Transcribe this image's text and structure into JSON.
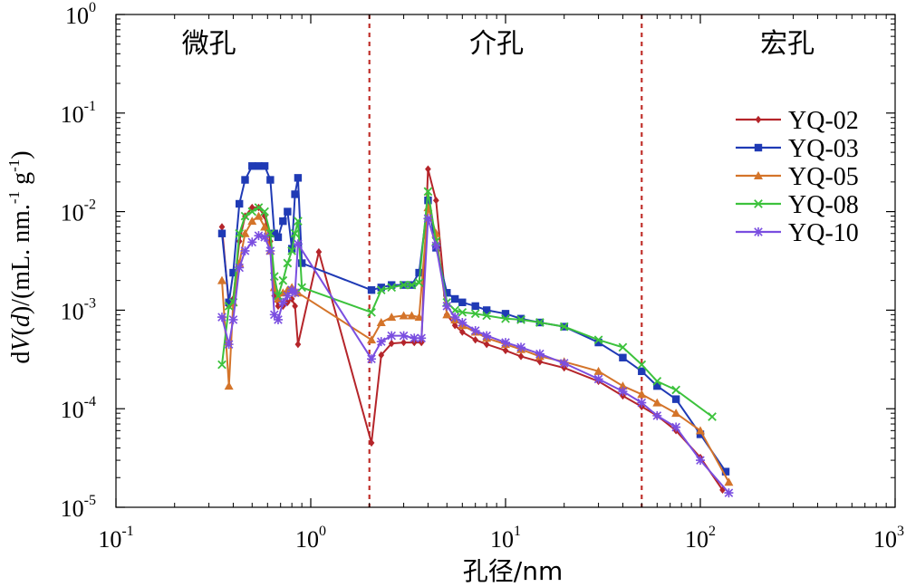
{
  "chart_data": {
    "type": "line",
    "xlabel": "孔径/nm",
    "ylabel": "dV(d)/(mL. nm.⁻¹ g⁻¹)",
    "ylabel_parts": {
      "prefix": "d",
      "italic_v": "V",
      "open": "(",
      "italic_d": "d",
      "rest": ")/(mL. nm.",
      "sup1": "-1",
      "mid": " g",
      "sup2": "-1",
      "close": ")"
    },
    "xscale": "log",
    "yscale": "log",
    "xlim": [
      0.1,
      1000
    ],
    "ylim": [
      1e-05,
      1
    ],
    "x_ticks": [
      {
        "value": 0.1,
        "base": "10",
        "exp": "-1"
      },
      {
        "value": 1,
        "base": "10",
        "exp": "0"
      },
      {
        "value": 10,
        "base": "10",
        "exp": "1"
      },
      {
        "value": 100,
        "base": "10",
        "exp": "2"
      },
      {
        "value": 1000,
        "base": "10",
        "exp": "3"
      }
    ],
    "y_ticks": [
      {
        "value": 1e-05,
        "base": "10",
        "exp": "-5"
      },
      {
        "value": 0.0001,
        "base": "10",
        "exp": "-4"
      },
      {
        "value": 0.001,
        "base": "10",
        "exp": "-3"
      },
      {
        "value": 0.01,
        "base": "10",
        "exp": "-2"
      },
      {
        "value": 0.1,
        "base": "10",
        "exp": "-1"
      },
      {
        "value": 1,
        "base": "10",
        "exp": "0"
      }
    ],
    "grid": false,
    "legend_position": "top-right",
    "region_dividers": [
      2,
      50
    ],
    "region_labels": [
      {
        "text": "微孔",
        "x": 0.3
      },
      {
        "text": "介孔",
        "x": 9
      },
      {
        "text": "宏孔",
        "x": 280
      }
    ],
    "divider_color": "#c0302a",
    "series": [
      {
        "name": "YQ-02",
        "color": "#b5252a",
        "marker": "diamond",
        "points": [
          [
            0.35,
            0.007
          ],
          [
            0.38,
            0.0011
          ],
          [
            0.4,
            0.0013
          ],
          [
            0.43,
            0.005
          ],
          [
            0.46,
            0.009
          ],
          [
            0.5,
            0.011
          ],
          [
            0.54,
            0.011
          ],
          [
            0.58,
            0.009
          ],
          [
            0.62,
            0.005
          ],
          [
            0.65,
            0.0014
          ],
          [
            0.68,
            0.0011
          ],
          [
            0.72,
            0.0011
          ],
          [
            0.76,
            0.0012
          ],
          [
            0.8,
            0.0013
          ],
          [
            0.83,
            0.0011
          ],
          [
            0.86,
            0.00045
          ],
          [
            1.1,
            0.0039
          ],
          [
            2.05,
            4.5e-05
          ],
          [
            2.3,
            0.00035
          ],
          [
            2.6,
            0.00046
          ],
          [
            3,
            0.00047
          ],
          [
            3.4,
            0.00047
          ],
          [
            3.7,
            0.00047
          ],
          [
            4,
            0.027
          ],
          [
            4.4,
            0.013
          ],
          [
            5,
            0.0009
          ],
          [
            5.5,
            0.0007
          ],
          [
            6,
            0.0006
          ],
          [
            7,
            0.0005
          ],
          [
            8,
            0.00045
          ],
          [
            10,
            0.00039
          ],
          [
            12,
            0.00034
          ],
          [
            15,
            0.0003
          ],
          [
            20,
            0.00026
          ],
          [
            30,
            0.00019
          ],
          [
            40,
            0.000135
          ],
          [
            50,
            0.000105
          ],
          [
            60,
            8.5e-05
          ],
          [
            75,
            6e-05
          ],
          [
            100,
            3.2e-05
          ],
          [
            130,
            1.5e-05
          ]
        ]
      },
      {
        "name": "YQ-03",
        "color": "#1f3ab5",
        "marker": "square",
        "points": [
          [
            0.35,
            0.006
          ],
          [
            0.38,
            0.0012
          ],
          [
            0.4,
            0.0024
          ],
          [
            0.43,
            0.012
          ],
          [
            0.46,
            0.021
          ],
          [
            0.5,
            0.029
          ],
          [
            0.54,
            0.029
          ],
          [
            0.58,
            0.029
          ],
          [
            0.62,
            0.021
          ],
          [
            0.65,
            0.006
          ],
          [
            0.68,
            0.0055
          ],
          [
            0.72,
            0.008
          ],
          [
            0.76,
            0.01
          ],
          [
            0.8,
            0.0042
          ],
          [
            0.83,
            0.015
          ],
          [
            0.86,
            0.022
          ],
          [
            0.9,
            0.003
          ],
          [
            2.05,
            0.0016
          ],
          [
            2.3,
            0.0017
          ],
          [
            2.6,
            0.0018
          ],
          [
            3,
            0.0018
          ],
          [
            3.3,
            0.0018
          ],
          [
            3.6,
            0.0024
          ],
          [
            4,
            0.013
          ],
          [
            4.4,
            0.0043
          ],
          [
            5,
            0.0015
          ],
          [
            5.5,
            0.0013
          ],
          [
            6,
            0.0012
          ],
          [
            7,
            0.0011
          ],
          [
            8,
            0.001
          ],
          [
            10,
            0.00092
          ],
          [
            12,
            0.00082
          ],
          [
            15,
            0.00075
          ],
          [
            20,
            0.00068
          ],
          [
            30,
            0.00047
          ],
          [
            40,
            0.00033
          ],
          [
            50,
            0.00024
          ],
          [
            60,
            0.00017
          ],
          [
            75,
            0.000125
          ],
          [
            100,
            5.5e-05
          ],
          [
            135,
            2.3e-05
          ]
        ]
      },
      {
        "name": "YQ-05",
        "color": "#d4742a",
        "marker": "triangle",
        "points": [
          [
            0.35,
            0.002
          ],
          [
            0.38,
            0.00017
          ],
          [
            0.4,
            0.0012
          ],
          [
            0.43,
            0.003
          ],
          [
            0.46,
            0.006
          ],
          [
            0.5,
            0.008
          ],
          [
            0.54,
            0.009
          ],
          [
            0.58,
            0.007
          ],
          [
            0.62,
            0.004
          ],
          [
            0.65,
            0.0017
          ],
          [
            0.68,
            0.0013
          ],
          [
            0.72,
            0.0015
          ],
          [
            0.76,
            0.0016
          ],
          [
            0.8,
            0.0017
          ],
          [
            0.83,
            0.0016
          ],
          [
            0.86,
            0.0015
          ],
          [
            2.05,
            0.0005
          ],
          [
            2.3,
            0.00075
          ],
          [
            2.6,
            0.00085
          ],
          [
            3,
            0.00088
          ],
          [
            3.3,
            0.00088
          ],
          [
            3.6,
            0.00085
          ],
          [
            4,
            0.011
          ],
          [
            4.4,
            0.006
          ],
          [
            5,
            0.0009
          ],
          [
            5.5,
            0.0008
          ],
          [
            6,
            0.0007
          ],
          [
            7,
            0.0006
          ],
          [
            8,
            0.00052
          ],
          [
            10,
            0.00045
          ],
          [
            12,
            0.0004
          ],
          [
            15,
            0.00034
          ],
          [
            20,
            0.0003
          ],
          [
            30,
            0.00024
          ],
          [
            40,
            0.00017
          ],
          [
            50,
            0.00014
          ],
          [
            60,
            0.000115
          ],
          [
            75,
            9e-05
          ],
          [
            100,
            6e-05
          ],
          [
            140,
            1.8e-05
          ]
        ]
      },
      {
        "name": "YQ-08",
        "color": "#3cc23c",
        "marker": "cross",
        "points": [
          [
            0.35,
            0.00028
          ],
          [
            0.38,
            0.0011
          ],
          [
            0.4,
            0.0012
          ],
          [
            0.43,
            0.006
          ],
          [
            0.46,
            0.009
          ],
          [
            0.5,
            0.01
          ],
          [
            0.54,
            0.011
          ],
          [
            0.58,
            0.01
          ],
          [
            0.62,
            0.006
          ],
          [
            0.65,
            0.0022
          ],
          [
            0.68,
            0.0014
          ],
          [
            0.72,
            0.002
          ],
          [
            0.76,
            0.003
          ],
          [
            0.8,
            0.004
          ],
          [
            0.83,
            0.006
          ],
          [
            0.86,
            0.008
          ],
          [
            0.9,
            0.0017
          ],
          [
            2.05,
            0.00095
          ],
          [
            2.3,
            0.0016
          ],
          [
            2.6,
            0.0017
          ],
          [
            3,
            0.0018
          ],
          [
            3.3,
            0.0018
          ],
          [
            3.6,
            0.0019
          ],
          [
            4,
            0.016
          ],
          [
            4.4,
            0.005
          ],
          [
            5,
            0.0012
          ],
          [
            5.5,
            0.001
          ],
          [
            6,
            0.00095
          ],
          [
            7,
            0.00092
          ],
          [
            8,
            0.00088
          ],
          [
            10,
            0.00082
          ],
          [
            12,
            0.0008
          ],
          [
            15,
            0.00075
          ],
          [
            20,
            0.00068
          ],
          [
            30,
            0.0005
          ],
          [
            40,
            0.00042
          ],
          [
            50,
            0.00028
          ],
          [
            60,
            0.00019
          ],
          [
            75,
            0.000155
          ],
          [
            115,
            8.3e-05
          ]
        ]
      },
      {
        "name": "YQ-10",
        "color": "#7a4ee0",
        "marker": "asterisk",
        "points": [
          [
            0.35,
            0.00085
          ],
          [
            0.38,
            0.00045
          ],
          [
            0.4,
            0.0008
          ],
          [
            0.43,
            0.0027
          ],
          [
            0.46,
            0.004
          ],
          [
            0.5,
            0.0049
          ],
          [
            0.54,
            0.0057
          ],
          [
            0.58,
            0.0055
          ],
          [
            0.62,
            0.004
          ],
          [
            0.65,
            0.0009
          ],
          [
            0.68,
            0.0008
          ],
          [
            0.72,
            0.0012
          ],
          [
            0.76,
            0.0014
          ],
          [
            0.8,
            0.0016
          ],
          [
            0.83,
            0.0015
          ],
          [
            0.86,
            0.0047
          ],
          [
            2.05,
            0.00032
          ],
          [
            2.3,
            0.00048
          ],
          [
            2.6,
            0.00055
          ],
          [
            3,
            0.00055
          ],
          [
            3.4,
            0.00052
          ],
          [
            3.7,
            0.00052
          ],
          [
            4,
            0.0085
          ],
          [
            4.4,
            0.0045
          ],
          [
            5,
            0.0011
          ],
          [
            5.5,
            0.00085
          ],
          [
            6,
            0.00075
          ],
          [
            7,
            0.00062
          ],
          [
            8,
            0.00055
          ],
          [
            10,
            0.00047
          ],
          [
            12,
            0.00042
          ],
          [
            15,
            0.00036
          ],
          [
            20,
            0.00029
          ],
          [
            30,
            0.0002
          ],
          [
            40,
            0.00015
          ],
          [
            50,
            0.000115
          ],
          [
            60,
            8.5e-05
          ],
          [
            75,
            6.5e-05
          ],
          [
            100,
            3e-05
          ],
          [
            140,
            1.4e-05
          ]
        ]
      }
    ]
  }
}
